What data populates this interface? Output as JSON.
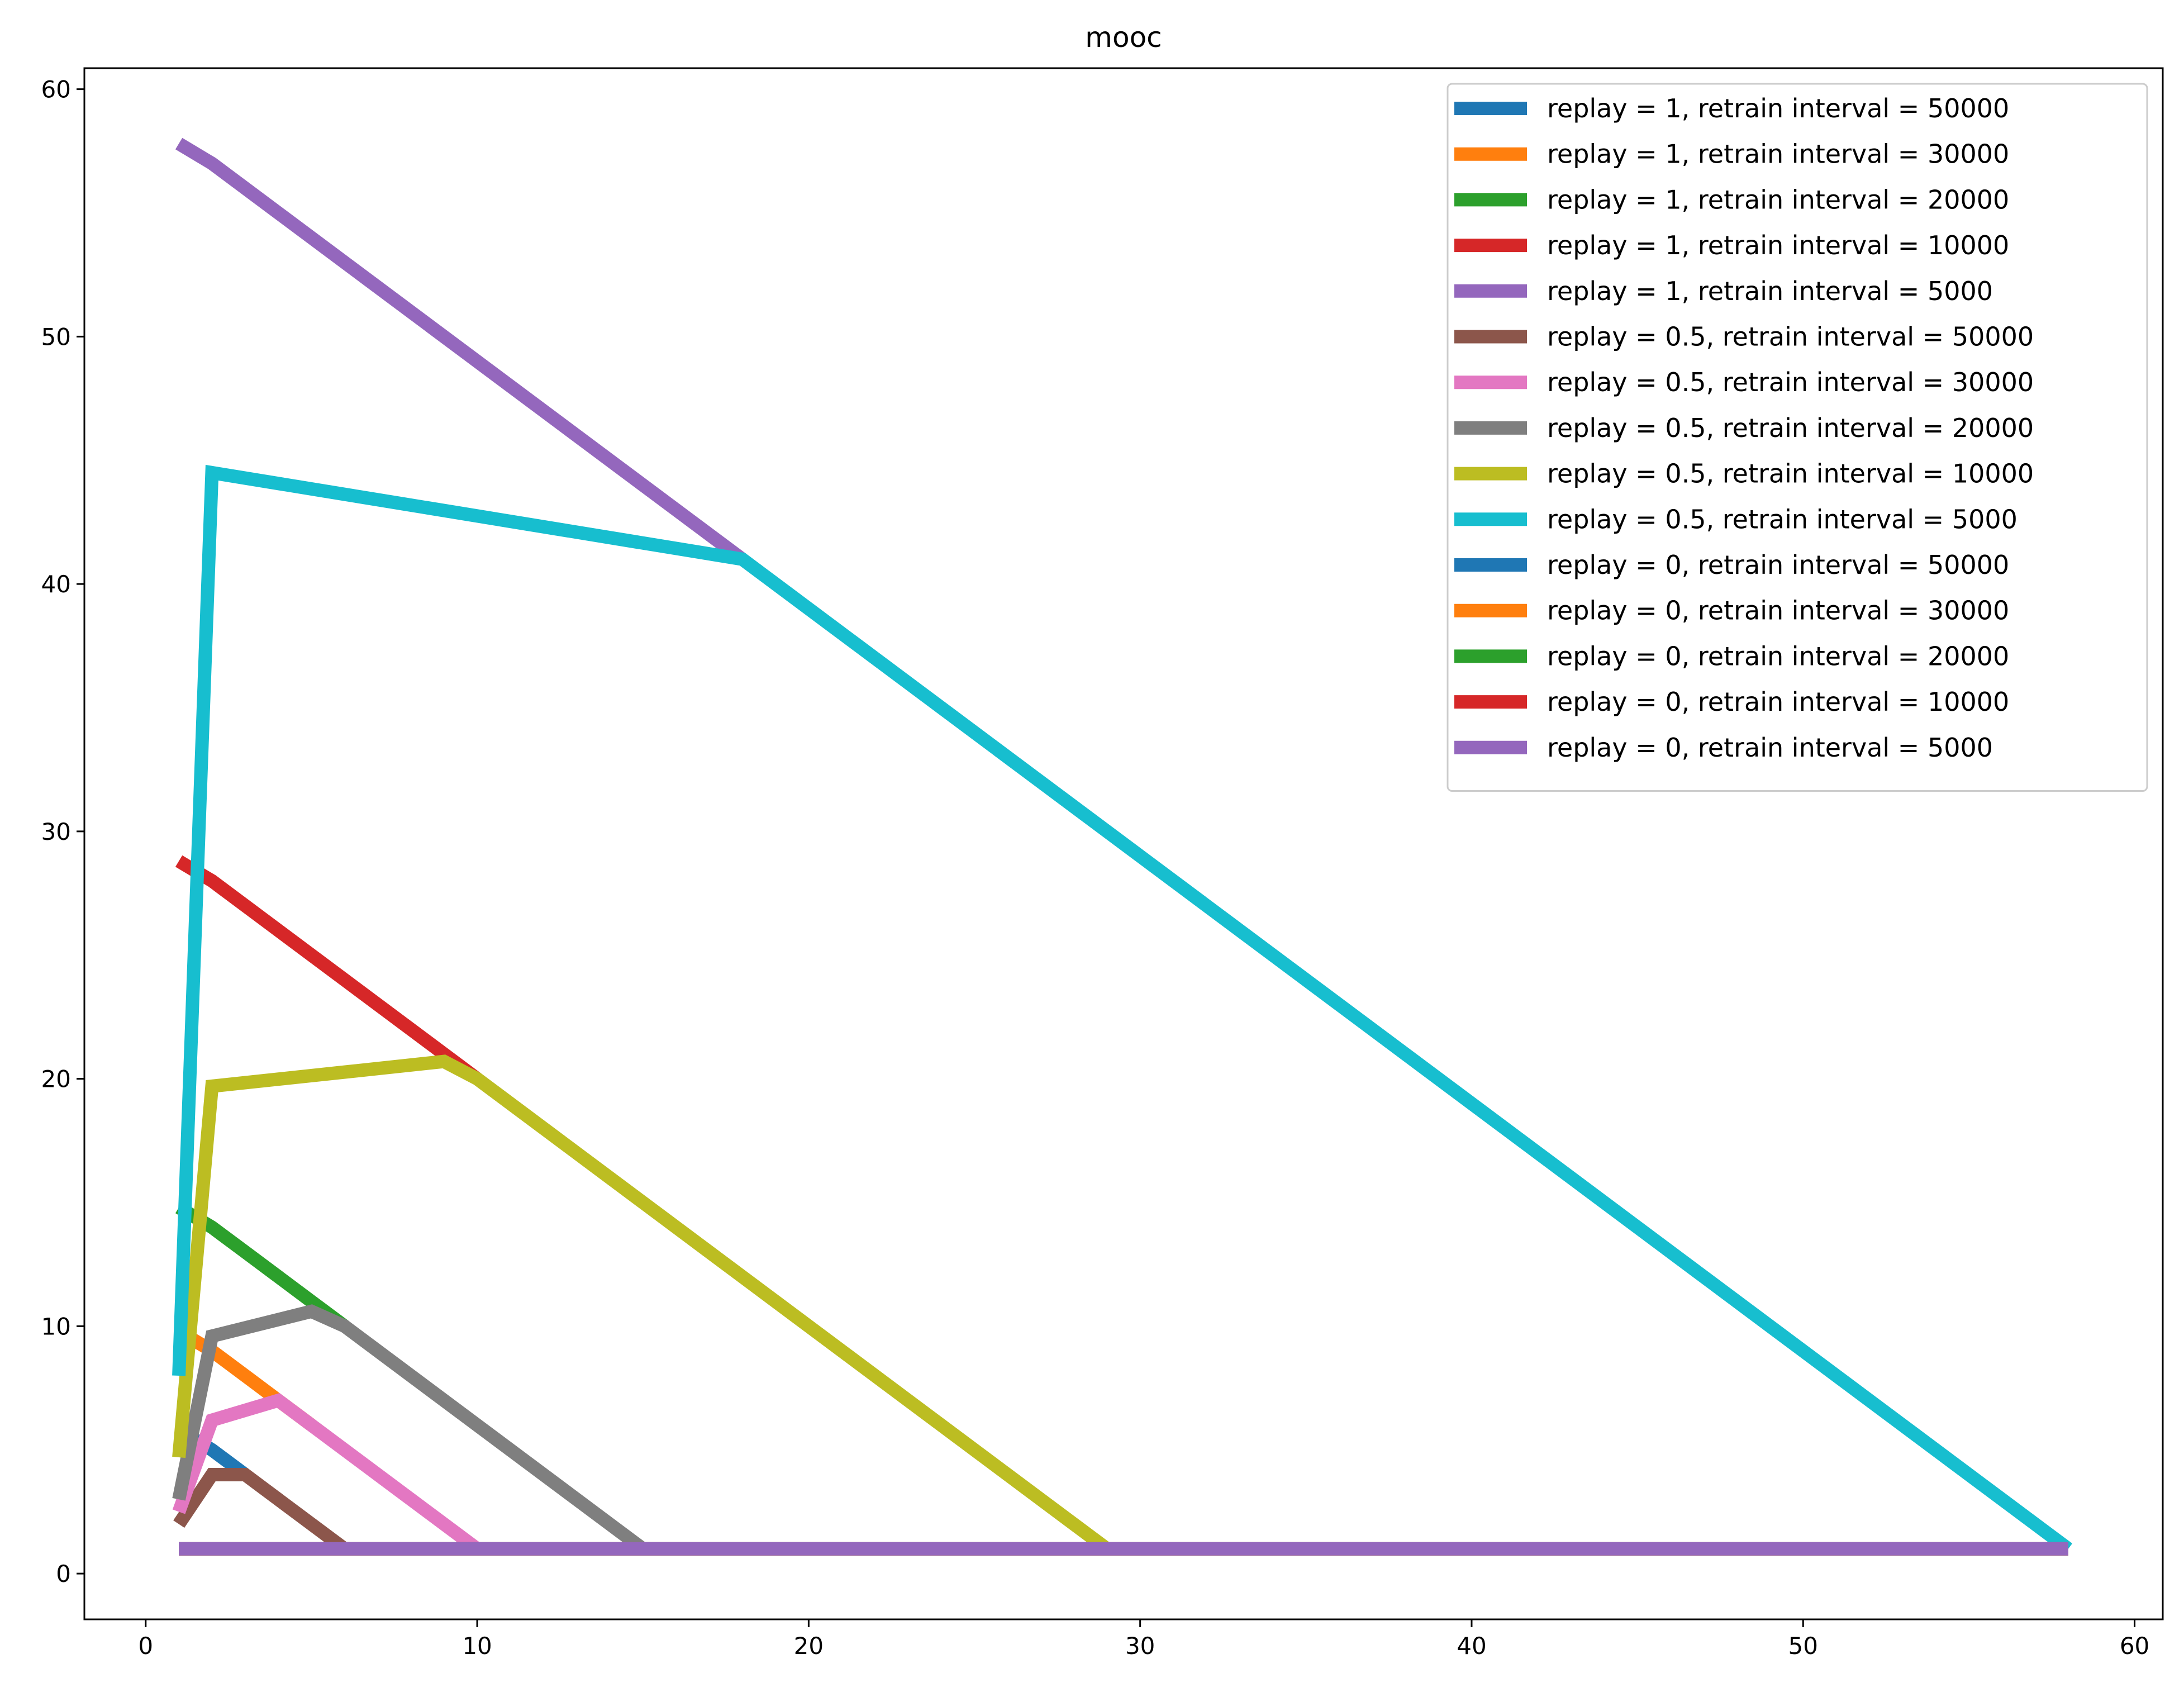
{
  "chart_data": {
    "type": "line",
    "title": "mooc",
    "xlabel": "",
    "ylabel": "",
    "xlim": [
      -1.85,
      60.85
    ],
    "ylim": [
      -1.85,
      60.85
    ],
    "xticks": [
      0,
      10,
      20,
      30,
      40,
      50,
      60
    ],
    "yticks": [
      0,
      10,
      20,
      30,
      40,
      50,
      60
    ],
    "grid": false,
    "legend_position": "top-right",
    "series": [
      {
        "name": "replay = 1, retrain interval = 50000",
        "color": "#1f77b4",
        "x": [
          1,
          2,
          3
        ],
        "y": [
          5.8,
          5,
          4
        ]
      },
      {
        "name": "replay = 1, retrain interval = 30000",
        "color": "#ff7f0e",
        "x": [
          1,
          2,
          3,
          4,
          5
        ],
        "y": [
          9.8,
          9,
          8,
          7,
          6
        ]
      },
      {
        "name": "replay = 1, retrain interval = 20000",
        "color": "#2ca02c",
        "x": [
          1,
          2,
          3,
          4,
          5,
          6
        ],
        "y": [
          14.8,
          14,
          13,
          12,
          11,
          10
        ]
      },
      {
        "name": "replay = 1, retrain interval = 10000",
        "color": "#d62728",
        "x": [
          1,
          2,
          10
        ],
        "y": [
          28.8,
          28,
          20
        ]
      },
      {
        "name": "replay = 1, retrain interval = 5000",
        "color": "#9467bd",
        "x": [
          1,
          2,
          18
        ],
        "y": [
          57.8,
          57,
          41
        ]
      },
      {
        "name": "replay = 0.5, retrain interval = 50000",
        "color": "#8c564b",
        "x": [
          1,
          2,
          3,
          4,
          6
        ],
        "y": [
          2,
          4,
          4,
          3,
          1
        ]
      },
      {
        "name": "replay = 0.5, retrain interval = 30000",
        "color": "#e377c2",
        "x": [
          1,
          2,
          4,
          10
        ],
        "y": [
          2.5,
          6.2,
          7,
          1
        ]
      },
      {
        "name": "replay = 0.5, retrain interval = 20000",
        "color": "#7f7f7f",
        "x": [
          1,
          2,
          5,
          6,
          15
        ],
        "y": [
          3,
          9.6,
          10.6,
          10,
          1
        ]
      },
      {
        "name": "replay = 0.5, retrain interval = 10000",
        "color": "#bcbd22",
        "x": [
          1,
          2,
          9,
          10,
          29
        ],
        "y": [
          4.7,
          19.7,
          20.7,
          20,
          1
        ]
      },
      {
        "name": "replay = 0.5, retrain interval = 5000",
        "color": "#17becf",
        "x": [
          1,
          2,
          18,
          58
        ],
        "y": [
          8,
          44.5,
          41,
          1
        ]
      },
      {
        "name": "replay = 0, retrain interval = 50000",
        "color": "#1f77b4",
        "x": [
          1,
          58
        ],
        "y": [
          1,
          1
        ]
      },
      {
        "name": "replay = 0, retrain interval = 30000",
        "color": "#ff7f0e",
        "x": [
          1,
          58
        ],
        "y": [
          1,
          1
        ]
      },
      {
        "name": "replay = 0, retrain interval = 20000",
        "color": "#2ca02c",
        "x": [
          1,
          58
        ],
        "y": [
          1,
          1
        ]
      },
      {
        "name": "replay = 0, retrain interval = 10000",
        "color": "#d62728",
        "x": [
          1,
          58
        ],
        "y": [
          1,
          1
        ]
      },
      {
        "name": "replay = 0, retrain interval = 5000",
        "color": "#9467bd",
        "x": [
          1,
          58
        ],
        "y": [
          1,
          1
        ]
      }
    ]
  }
}
